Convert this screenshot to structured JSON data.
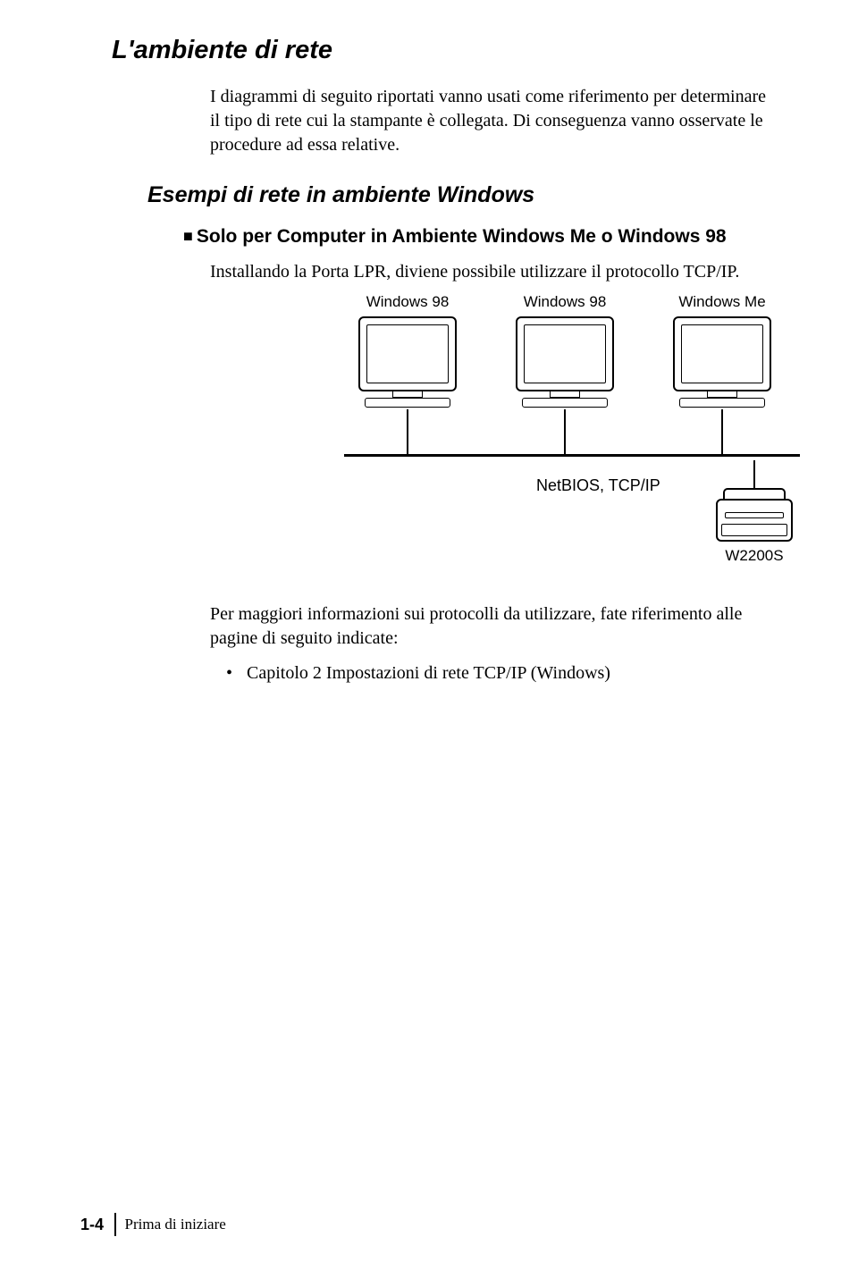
{
  "section_title": "L'ambiente di rete",
  "intro": "I diagrammi di seguito riportati vanno usati come riferimento per determinare il tipo di rete cui la stampante è collegata. Di conseguenza vanno osservate le procedure ad essa relative.",
  "sub_title": "Esempi di rete in ambiente Windows",
  "bullet_heading": "Solo per Computer in Ambiente Windows Me o Windows 98",
  "body1": "Installando la Porta LPR, diviene possibile utilizzare il protocollo TCP/IP.",
  "diagram": {
    "pcs": [
      {
        "label": "Windows 98"
      },
      {
        "label": "Windows 98"
      },
      {
        "label": "Windows Me"
      }
    ],
    "net_label": "NetBIOS, TCP/IP",
    "printer_label": "W2200S"
  },
  "body2": "Per maggiori informazioni sui protocolli da utilizzare, fate riferimento alle pagine di seguito indicate:",
  "ref_item": "Capitolo 2 Impostazioni di rete TCP/IP (Windows)",
  "footer": {
    "page": "1-4",
    "chapter": "Prima di iniziare"
  }
}
